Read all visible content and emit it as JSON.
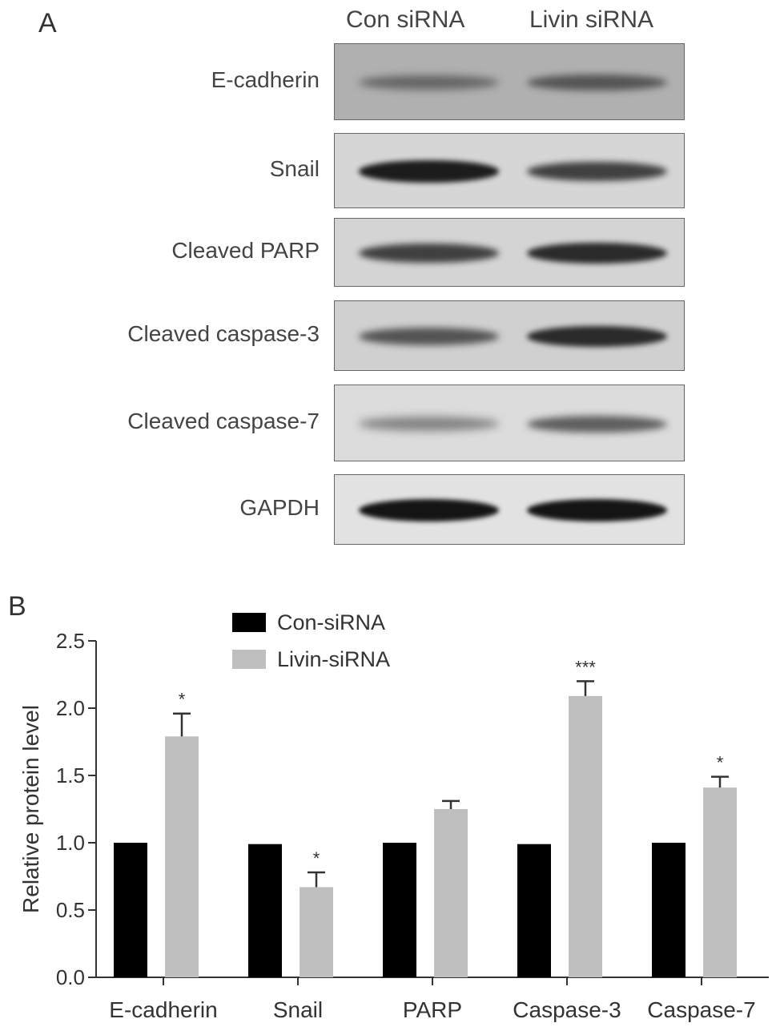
{
  "panel_a": {
    "letter": "A",
    "lanes": [
      "Con siRNA",
      "Livin siRNA"
    ],
    "blots": [
      {
        "label": "E-cadherin",
        "background": "#b0b0b0",
        "con_intensity": 0.3,
        "livin_intensity": 0.45
      },
      {
        "label": "Snail",
        "background": "#d6d6d6",
        "con_intensity": 0.95,
        "livin_intensity": 0.7
      },
      {
        "label": "Cleaved PARP",
        "background": "#d4d4d4",
        "con_intensity": 0.7,
        "livin_intensity": 0.85
      },
      {
        "label": "Cleaved caspase-3",
        "background": "#d0d0d0",
        "con_intensity": 0.55,
        "livin_intensity": 0.85
      },
      {
        "label": "Cleaved caspase-7",
        "background": "#dcdcdc",
        "con_intensity": 0.25,
        "livin_intensity": 0.5
      },
      {
        "label": "GAPDH",
        "background": "#e2e2e2",
        "con_intensity": 1.0,
        "livin_intensity": 1.0
      }
    ]
  },
  "panel_b": {
    "letter": "B"
  },
  "chart_data": {
    "type": "bar",
    "title": "",
    "xlabel": "",
    "ylabel": "Relative protein level",
    "ylim": [
      0,
      2.5
    ],
    "yticks": [
      "0.0",
      "0.5",
      "1.0",
      "1.5",
      "2.0",
      "2.5"
    ],
    "categories": [
      "E-cadherin",
      "Snail",
      "PARP",
      "Caspase-3",
      "Caspase-7"
    ],
    "legend_position": "top-left",
    "series": [
      {
        "name": "Con-siRNA",
        "color": "#000000",
        "values": [
          1.0,
          0.99,
          1.0,
          0.99,
          1.0
        ],
        "errors": [
          0,
          0,
          0,
          0,
          0
        ]
      },
      {
        "name": "Livin-siRNA",
        "color": "#bfbfbf",
        "values": [
          1.79,
          0.67,
          1.25,
          2.09,
          1.41
        ],
        "errors": [
          0.17,
          0.11,
          0.06,
          0.11,
          0.08
        ]
      }
    ],
    "significance": [
      "*",
      "*",
      "",
      "***",
      "*"
    ]
  }
}
